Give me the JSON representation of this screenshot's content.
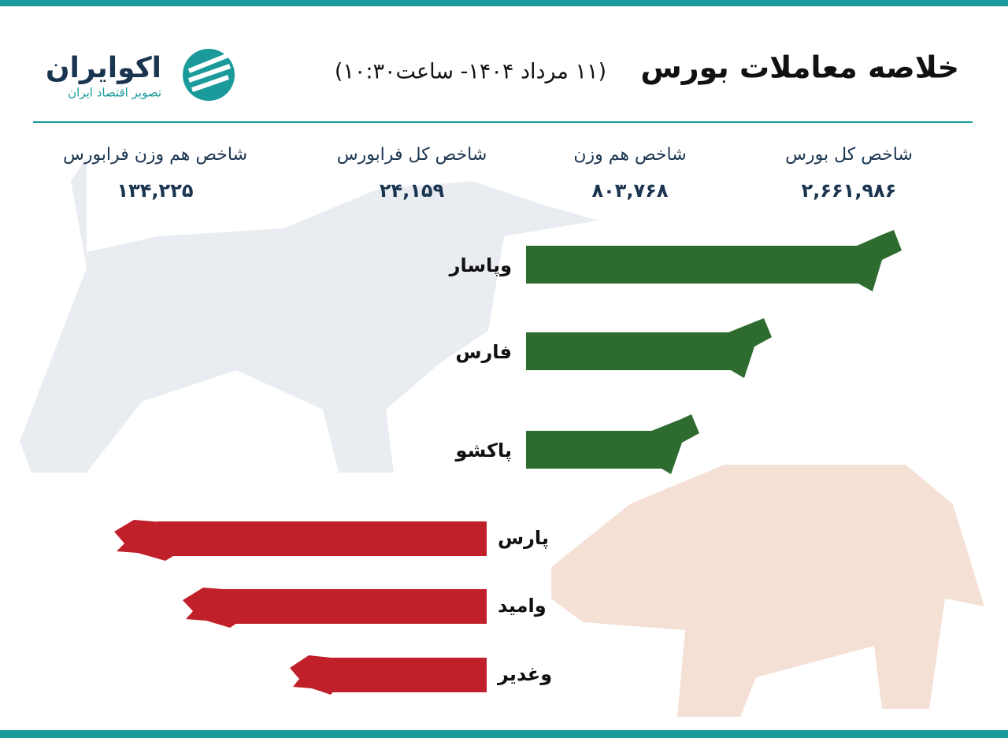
{
  "header": {
    "title": "خلاصه معاملات بورس",
    "date": "(۱۱ مرداد ۱۴۰۴- ساعت۱۰:۳۰)"
  },
  "logo": {
    "name": "اکوایران",
    "tagline": "تصویر اقتصاد ایران"
  },
  "indices": [
    {
      "label": "شاخص کل بورس",
      "value": "۲,۶۶۱,۹۸۶"
    },
    {
      "label": "شاخص هم وزن",
      "value": "۸۰۳,۷۶۸"
    },
    {
      "label": "شاخص کل فرابورس",
      "value": "۲۴,۱۵۹"
    },
    {
      "label": "شاخص هم وزن فرابورس",
      "value": "۱۳۴,۲۲۵"
    }
  ],
  "gainers": [
    "وپاسار",
    "فارس",
    "پاکشو"
  ],
  "losers": [
    "پارس",
    "وامید",
    "وغدیر"
  ]
}
